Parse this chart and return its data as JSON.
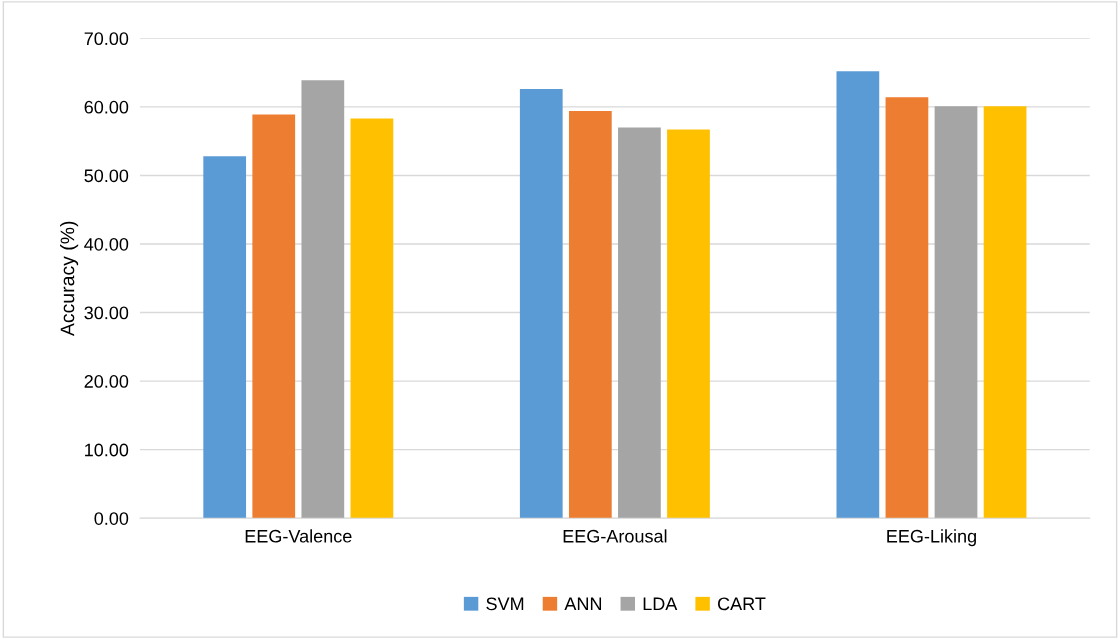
{
  "chart_data": {
    "type": "bar",
    "ylabel": "Accuracy (%)",
    "categories": [
      "EEG-Valence",
      "EEG-Arousal",
      "EEG-Liking"
    ],
    "series": [
      {
        "name": "SVM",
        "color": "#5b9bd5",
        "values": [
          52.8,
          62.6,
          65.2
        ]
      },
      {
        "name": "ANN",
        "color": "#ed7d31",
        "values": [
          58.9,
          59.4,
          61.4
        ]
      },
      {
        "name": "LDA",
        "color": "#a5a5a5",
        "values": [
          63.9,
          57.0,
          60.1
        ]
      },
      {
        "name": "CART",
        "color": "#ffc000",
        "values": [
          58.3,
          56.7,
          60.1
        ]
      }
    ],
    "ylim": [
      0,
      70
    ],
    "yticks": [
      {
        "value": 0,
        "label": "0.00"
      },
      {
        "value": 10,
        "label": "10.00"
      },
      {
        "value": 20,
        "label": "20.00"
      },
      {
        "value": 30,
        "label": "30.00"
      },
      {
        "value": 40,
        "label": "40.00"
      },
      {
        "value": 50,
        "label": "50.00"
      },
      {
        "value": 60,
        "label": "60.00"
      },
      {
        "value": 70,
        "label": "70.00"
      }
    ],
    "grid": "y",
    "legend": "bottom"
  }
}
